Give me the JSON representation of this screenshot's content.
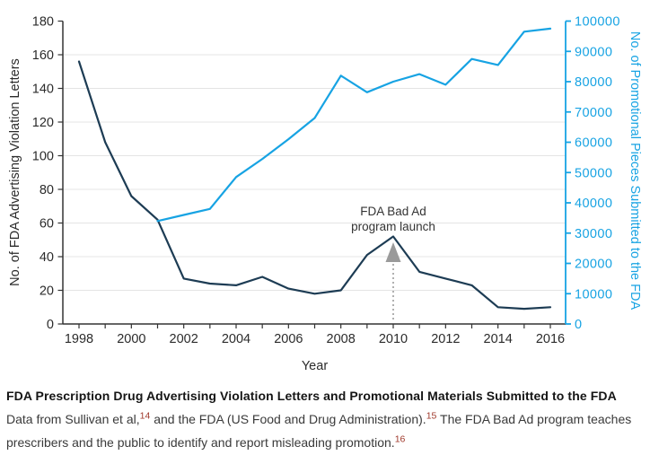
{
  "figure": {
    "caption": {
      "title": "FDA Prescription Drug Advertising Violation Letters and Promotional Materials Submitted to the FDA",
      "body_segments": [
        {
          "text": "Data from Sullivan et al,"
        },
        {
          "sup": "14"
        },
        {
          "text": " and the FDA (US Food and Drug Administration)."
        },
        {
          "sup": "15"
        },
        {
          "text": " The FDA Bad Ad program teaches prescribers and the public to identify and report misleading promotion."
        },
        {
          "sup": "16"
        }
      ]
    }
  },
  "colors": {
    "letters_line": "#1d3c54",
    "promo_line": "#17a3e3",
    "gridline": "#e4e4e4",
    "axis": "#333333",
    "tick_text": "#2b2b2b",
    "arrow_gray": "#9a9a9a",
    "dotted_gray": "#8f8f8f",
    "reference_superscript": "#a03a2c"
  },
  "chart_data": {
    "type": "line",
    "xlabel": "Year",
    "ylabel_left": "No. of FDA Advertising Violation Letters",
    "ylabel_right": "No. of Promotional Pieces Submitted to the FDA",
    "xlim": [
      1997.4,
      2016.6
    ],
    "xticks_labeled": [
      1998,
      2000,
      2002,
      2004,
      2006,
      2008,
      2010,
      2012,
      2014,
      2016
    ],
    "xticks_minor_every_year": true,
    "ylim_left": [
      0,
      180
    ],
    "ytick_step_left": 20,
    "ylim_right": [
      0,
      100000
    ],
    "ytick_step_right": 10000,
    "grid": "horizontal",
    "legend": "none",
    "series": [
      {
        "name": "No. of FDA Advertising Violation Letters",
        "axis": "left",
        "color": "#1d3c54",
        "x": [
          1998,
          1999,
          2000,
          2001,
          2002,
          2003,
          2004,
          2005,
          2006,
          2007,
          2008,
          2009,
          2010,
          2011,
          2012,
          2013,
          2014,
          2015,
          2016
        ],
        "values": [
          156,
          108,
          76,
          62,
          27,
          24,
          23,
          28,
          21,
          18,
          20,
          41,
          52,
          31,
          27,
          23,
          10,
          9,
          10
        ]
      },
      {
        "name": "No. of Promotional Pieces Submitted to the FDA",
        "axis": "right",
        "color": "#17a3e3",
        "x": [
          2001,
          2002,
          2003,
          2004,
          2005,
          2006,
          2007,
          2008,
          2009,
          2010,
          2011,
          2012,
          2013,
          2014,
          2015,
          2016
        ],
        "values": [
          34000,
          36000,
          38000,
          48500,
          54500,
          61000,
          68000,
          82000,
          76500,
          80000,
          82500,
          79000,
          87500,
          85500,
          96500,
          97500
        ]
      }
    ],
    "annotation": {
      "line1": "FDA Bad Ad",
      "line2": "program launch",
      "year": 2010,
      "style": "gray up-arrow with dotted vertical line to x-axis"
    }
  }
}
